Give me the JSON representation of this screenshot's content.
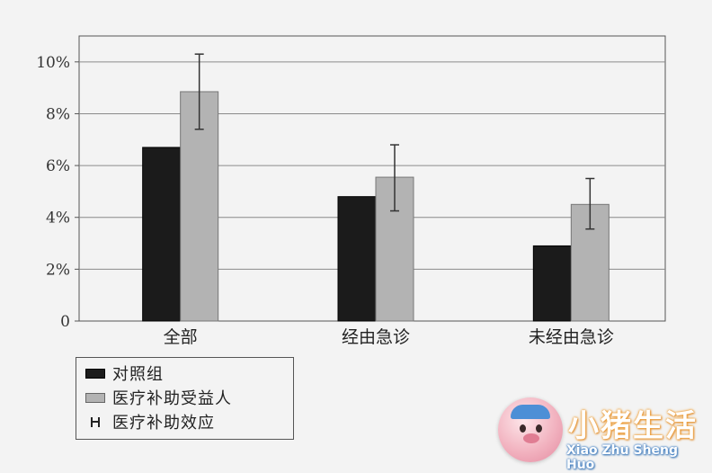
{
  "chart_data": {
    "type": "bar",
    "title": "",
    "xlabel": "",
    "ylabel": "",
    "categories": [
      "全部",
      "经由急诊",
      "未经由急诊"
    ],
    "series": [
      {
        "name": "对照组",
        "color": "#1b1b1b",
        "values": [
          6.7,
          4.8,
          2.9
        ]
      },
      {
        "name": "医疗补助受益人",
        "color": "#b3b3b3",
        "values": [
          8.85,
          5.55,
          4.5
        ]
      }
    ],
    "error_bars": {
      "name": "医疗补助效应",
      "series": "医疗补助受益人",
      "low": [
        7.4,
        4.25,
        3.55
      ],
      "high": [
        10.3,
        6.8,
        5.5
      ]
    },
    "ylim": [
      0,
      11
    ],
    "yticks": [
      0,
      2,
      4,
      6,
      8,
      10
    ],
    "ytick_labels": [
      "0",
      "2%",
      "4%",
      "6%",
      "8%",
      "10%"
    ],
    "grid": "horizontal",
    "legend_position": "bottom-left"
  },
  "legend": {
    "items": [
      {
        "label": "对照组"
      },
      {
        "label": "医疗补助受益人"
      },
      {
        "label": "医疗补助效应"
      }
    ]
  },
  "watermark": {
    "title": "小猪生活",
    "subtitle": "Xiao Zhu Sheng Huo",
    "icon": "pig-mascot-icon"
  }
}
